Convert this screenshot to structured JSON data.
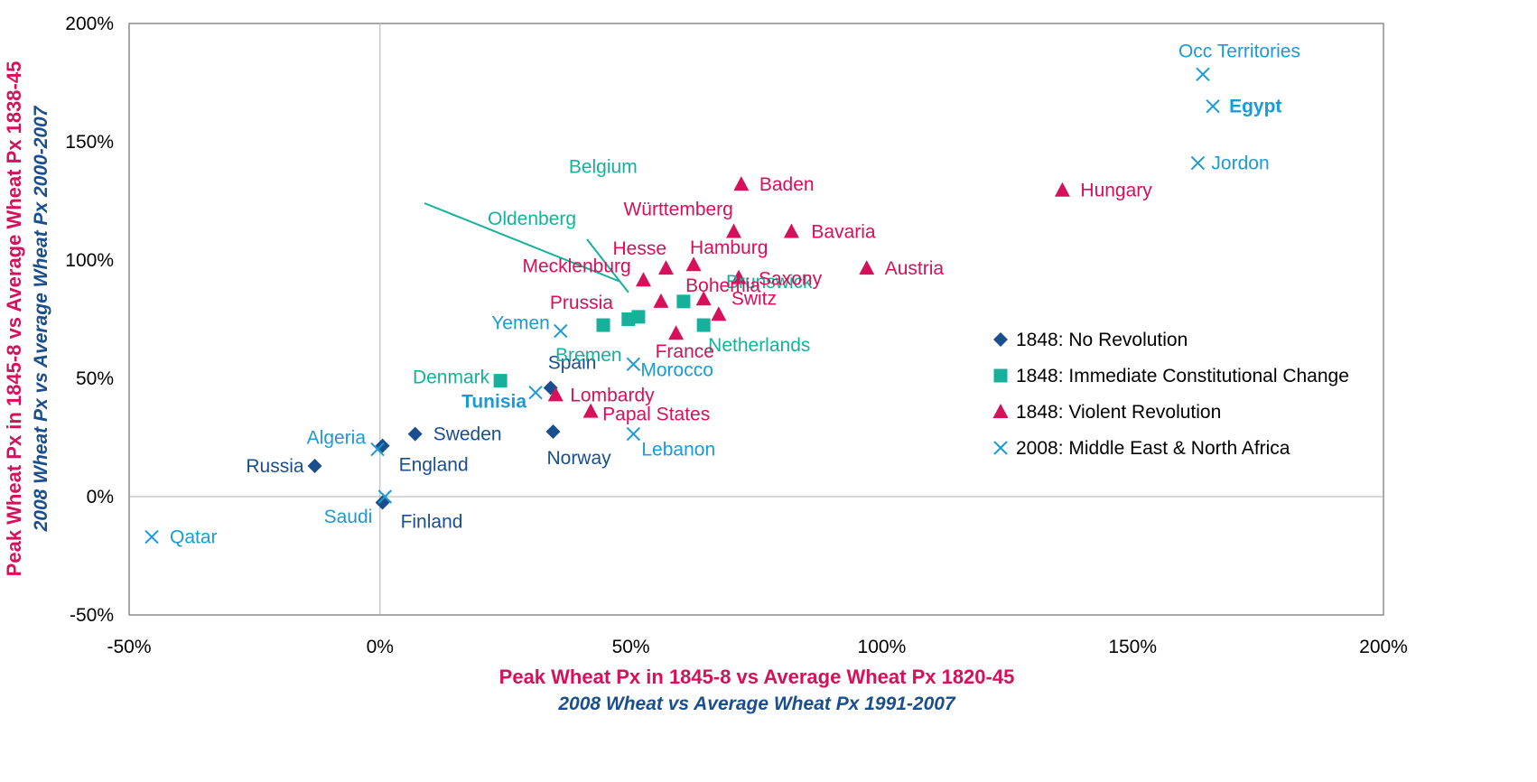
{
  "chart_data": {
    "type": "scatter",
    "xlim": [
      -0.5,
      2.0
    ],
    "ylim": [
      -0.5,
      2.0
    ],
    "x_ticks": [
      {
        "value": -0.5,
        "label": "-50%"
      },
      {
        "value": 0,
        "label": "0%"
      },
      {
        "value": 0.5,
        "label": "50%"
      },
      {
        "value": 1.0,
        "label": "100%"
      },
      {
        "value": 1.5,
        "label": "150%"
      },
      {
        "value": 2.0,
        "label": "200%"
      }
    ],
    "y_ticks": [
      {
        "value": -0.5,
        "label": "-50%"
      },
      {
        "value": 0,
        "label": "0%"
      },
      {
        "value": 0.5,
        "label": "50%"
      },
      {
        "value": 1.0,
        "label": "100%"
      },
      {
        "value": 1.5,
        "label": "150%"
      },
      {
        "value": 2.0,
        "label": "200%"
      }
    ],
    "xlabel": "Peak Wheat Px in 1845-8 vs Average Wheat Px 1820-45",
    "xlabel2": "2008 Wheat vs Average Wheat Px 1991-2007",
    "ylabel": "Peak Wheat Px in 1845-8 vs Average Wheat Px 1838-45",
    "ylabel2": "2008 Wheat Px vs Average Wheat Px 2000-2007",
    "grid": false,
    "zero_lines": true,
    "legend_position": "right",
    "colors": {
      "no_revolution": "#1a4e8c",
      "constitutional": "#17b09b",
      "violent": "#d6105a",
      "mena": "#1b9ad6",
      "axis_title_primary": "#d6105a",
      "axis_title_secondary": "#1a4e8c",
      "zero_line": "#b0b0b0"
    },
    "series": [
      {
        "name": "1848: No Revolution",
        "marker": "diamond",
        "color": "#1a4e8c",
        "points": [
          {
            "label": "Russia",
            "x": -0.13,
            "y": 0.13
          },
          {
            "label": "England",
            "x": 0.005,
            "y": 0.215
          },
          {
            "label": "Finland",
            "x": 0.005,
            "y": -0.025
          },
          {
            "label": "Sweden",
            "x": 0.07,
            "y": 0.265
          },
          {
            "label": "Spain",
            "x": 0.34,
            "y": 0.46
          },
          {
            "label": "Norway",
            "x": 0.345,
            "y": 0.275
          }
        ]
      },
      {
        "name": "1848: Immediate Constitutional Change",
        "marker": "square",
        "color": "#17b09b",
        "points": [
          {
            "label": "Denmark",
            "x": 0.24,
            "y": 0.49
          },
          {
            "label": "Bremen",
            "x": 0.445,
            "y": 0.725
          },
          {
            "label": "Belgium",
            "x": 0.495,
            "y": 0.75
          },
          {
            "label": "Oldenberg",
            "x": 0.515,
            "y": 0.76
          },
          {
            "label": "Brunswick",
            "x": 0.605,
            "y": 0.825
          },
          {
            "label": "Netherlands",
            "x": 0.645,
            "y": 0.725
          }
        ]
      },
      {
        "name": "1848: Violent Revolution",
        "marker": "triangle",
        "color": "#d6105a",
        "points": [
          {
            "label": "Lombardy",
            "x": 0.35,
            "y": 0.43
          },
          {
            "label": "Papal States",
            "x": 0.42,
            "y": 0.36
          },
          {
            "label": "Prussia",
            "x": 0.56,
            "y": 0.825
          },
          {
            "label": "Mecklenburg",
            "x": 0.525,
            "y": 0.915
          },
          {
            "label": "Hesse",
            "x": 0.57,
            "y": 0.965
          },
          {
            "label": "France",
            "x": 0.59,
            "y": 0.69
          },
          {
            "label": "Hamburg",
            "x": 0.625,
            "y": 0.98
          },
          {
            "label": "Bohemia",
            "x": 0.645,
            "y": 0.835
          },
          {
            "label": "Switz",
            "x": 0.675,
            "y": 0.77
          },
          {
            "label": "Württemberg",
            "x": 0.705,
            "y": 1.12
          },
          {
            "label": "Saxony",
            "x": 0.715,
            "y": 0.925
          },
          {
            "label": "Baden",
            "x": 0.72,
            "y": 1.32
          },
          {
            "label": "Bavaria",
            "x": 0.82,
            "y": 1.12
          },
          {
            "label": "Austria",
            "x": 0.97,
            "y": 0.965
          },
          {
            "label": "Hungary",
            "x": 1.36,
            "y": 1.295
          }
        ]
      },
      {
        "name": "2008: Middle East & North Africa",
        "marker": "x",
        "color": "#1b9ad6",
        "points": [
          {
            "label": "Qatar",
            "x": -0.455,
            "y": -0.17
          },
          {
            "label": "Algeria",
            "x": -0.005,
            "y": 0.2
          },
          {
            "label": "Saudi",
            "x": 0.01,
            "y": 0.0
          },
          {
            "label": "Tunisia",
            "x": 0.31,
            "y": 0.44
          },
          {
            "label": "Yemen",
            "x": 0.36,
            "y": 0.7
          },
          {
            "label": "Morocco",
            "x": 0.505,
            "y": 0.56
          },
          {
            "label": "Lebanon",
            "x": 0.505,
            "y": 0.265
          },
          {
            "label": "Jordon",
            "x": 1.63,
            "y": 1.41
          },
          {
            "label": "Egypt",
            "x": 1.66,
            "y": 1.65
          },
          {
            "label": "Occ Territories",
            "x": 1.64,
            "y": 1.785
          }
        ]
      }
    ]
  }
}
